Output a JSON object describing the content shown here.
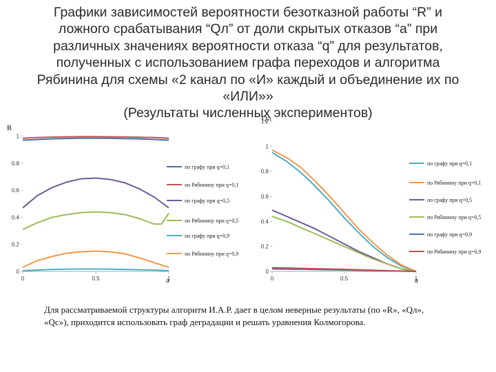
{
  "title_lines": [
    "Графики зависимостей вероятности  безотказной работы “R” и",
    "ложного срабатывания “Qл” от доли скрытых отказов “a” при",
    "различных значениях вероятности отказа “q” для результатов,",
    "полученных с использованием графа переходов и алгоритма",
    "Рябинина для схемы «2 канал по «И» каждый и объединение их по",
    "«ИЛИ»»",
    "(Результаты численных экспериментов)"
  ],
  "chart_data": [
    {
      "type": "line",
      "ylabel": "R",
      "xlabel": "a",
      "x_ticks": [
        "0",
        "0.5",
        "1"
      ],
      "y_ticks": [
        "0",
        "0.2",
        "0.4",
        "0.6",
        "0.8",
        "1"
      ],
      "xlim": [
        0,
        1
      ],
      "ylim": [
        0,
        1.1
      ],
      "legend_position": "right",
      "series": [
        {
          "name": "по графу при q=0,1",
          "color": "#4a6fa5",
          "x": [
            0,
            0.1,
            0.2,
            0.3,
            0.4,
            0.5,
            0.6,
            0.7,
            0.8,
            0.9,
            1.0
          ],
          "y": [
            0.97,
            0.975,
            0.98,
            0.983,
            0.985,
            0.985,
            0.984,
            0.982,
            0.98,
            0.975,
            0.97
          ]
        },
        {
          "name": "по Рябинину при q=0,1",
          "color": "#c0504d",
          "x": [
            0,
            0.1,
            0.2,
            0.3,
            0.4,
            0.5,
            0.6,
            0.7,
            0.8,
            0.9,
            1.0
          ],
          "y": [
            0.985,
            0.99,
            0.993,
            0.995,
            0.996,
            0.996,
            0.995,
            0.994,
            0.992,
            0.99,
            0.985
          ]
        },
        {
          "name": "по графу при q=0,5",
          "color": "#6f5a96",
          "x": [
            0,
            0.1,
            0.2,
            0.3,
            0.4,
            0.5,
            0.6,
            0.7,
            0.8,
            0.9,
            1.0
          ],
          "y": [
            0.47,
            0.56,
            0.62,
            0.66,
            0.685,
            0.69,
            0.68,
            0.655,
            0.61,
            0.55,
            0.47
          ]
        },
        {
          "name": "по Рябинину при q=0,5",
          "color": "#9bbb59",
          "x": [
            0,
            0.1,
            0.2,
            0.3,
            0.4,
            0.5,
            0.6,
            0.7,
            0.8,
            0.9,
            0.95,
            1.0
          ],
          "y": [
            0.31,
            0.36,
            0.4,
            0.42,
            0.435,
            0.44,
            0.435,
            0.42,
            0.39,
            0.35,
            0.35,
            0.43
          ]
        },
        {
          "name": "по графу при q=0,9",
          "color": "#4bacc6",
          "x": [
            0,
            0.1,
            0.2,
            0.3,
            0.4,
            0.5,
            0.6,
            0.7,
            0.8,
            0.9,
            1.0
          ],
          "y": [
            0.005,
            0.01,
            0.015,
            0.017,
            0.018,
            0.018,
            0.017,
            0.015,
            0.012,
            0.01,
            0.005
          ]
        },
        {
          "name": "по Рябинину при q=0,9",
          "color": "#f79646",
          "x": [
            0,
            0.1,
            0.2,
            0.3,
            0.4,
            0.5,
            0.6,
            0.7,
            0.8,
            0.9,
            1.0
          ],
          "y": [
            0.03,
            0.08,
            0.11,
            0.135,
            0.145,
            0.15,
            0.145,
            0.13,
            0.1,
            0.065,
            0.03
          ]
        }
      ]
    },
    {
      "type": "line",
      "ylabel": "Qл",
      "xlabel": "a",
      "x_ticks": [
        "0",
        "0.5",
        "1"
      ],
      "y_ticks": [
        "0",
        "0.2",
        "0.4",
        "0.6",
        "0.8",
        "1",
        "1.2"
      ],
      "xlim": [
        0,
        1
      ],
      "ylim": [
        0,
        1.2
      ],
      "legend_position": "right",
      "series": [
        {
          "name": "по графу при q=0,1",
          "color": "#4bacc6",
          "x": [
            0,
            0.1,
            0.2,
            0.3,
            0.4,
            0.5,
            0.6,
            0.7,
            0.8,
            0.9,
            1.0
          ],
          "y": [
            0.95,
            0.88,
            0.79,
            0.68,
            0.56,
            0.43,
            0.31,
            0.2,
            0.11,
            0.04,
            0.0
          ]
        },
        {
          "name": "по Рябинину при q=0,1",
          "color": "#f79646",
          "x": [
            0,
            0.1,
            0.2,
            0.3,
            0.4,
            0.5,
            0.6,
            0.7,
            0.8,
            0.9,
            1.0
          ],
          "y": [
            0.97,
            0.91,
            0.83,
            0.72,
            0.6,
            0.47,
            0.34,
            0.23,
            0.13,
            0.05,
            0.0
          ]
        },
        {
          "name": "по графу при q=0,5",
          "color": "#6f5a96",
          "x": [
            0,
            0.1,
            0.2,
            0.3,
            0.4,
            0.5,
            0.6,
            0.7,
            0.8,
            0.9,
            1.0
          ],
          "y": [
            0.49,
            0.44,
            0.39,
            0.34,
            0.28,
            0.22,
            0.16,
            0.11,
            0.06,
            0.02,
            0.0
          ]
        },
        {
          "name": "по Рябинину при q=0,5",
          "color": "#9bbb59",
          "x": [
            0,
            0.1,
            0.2,
            0.3,
            0.4,
            0.5,
            0.6,
            0.7,
            0.8,
            0.9,
            1.0
          ],
          "y": [
            0.44,
            0.4,
            0.35,
            0.3,
            0.25,
            0.2,
            0.15,
            0.1,
            0.06,
            0.02,
            0.0
          ]
        },
        {
          "name": "по графу при q=0,9",
          "color": "#4a6fa5",
          "x": [
            0,
            0.2,
            0.4,
            0.6,
            0.8,
            1.0
          ],
          "y": [
            0.02,
            0.017,
            0.013,
            0.009,
            0.004,
            0.0
          ]
        },
        {
          "name": "по Рябинину при q=0,9",
          "color": "#c0504d",
          "x": [
            0,
            0.2,
            0.4,
            0.6,
            0.8,
            1.0
          ],
          "y": [
            0.03,
            0.025,
            0.019,
            0.013,
            0.006,
            0.0
          ]
        }
      ]
    }
  ],
  "footnote_lines": [
    "Для рассматриваемой структуры алгоритм И.А.Р. дает в целом неверные результаты (по «R», «Qл»,",
    "«Qс»), приходится использовать граф деградации и решать уравнения Колмогорова."
  ]
}
